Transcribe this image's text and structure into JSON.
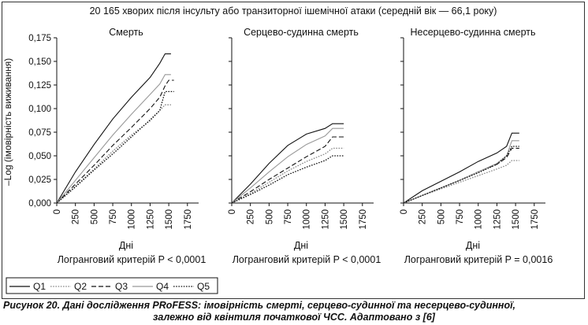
{
  "caption": {
    "line1": "Рисунок 20. Дані дослідження PRoFESS: імовірність смерті, серцево-судинної та несерцево-судинної,",
    "line2": "залежно від квінтиля початкової ЧСС. Адаптовано з [6]"
  },
  "chart_data": {
    "type": "line",
    "title": "20 165 хворих після інсульту або транзиторної ішемічної атаки (середній вік — 66,1 року)",
    "ylabel": "–Log (імовірність виживання)",
    "xlabel": "Дні",
    "ylim": [
      0,
      0.175
    ],
    "xlim": [
      0,
      1900
    ],
    "x_ticks": [
      "0",
      "250",
      "500",
      "750",
      "1000",
      "1250",
      "1500",
      "1750"
    ],
    "y_ticks": [
      "0,000",
      "0,025",
      "0,050",
      "0,075",
      "0,100",
      "0,125",
      "0,150",
      "0,175"
    ],
    "grid": false,
    "legend": {
      "placement": "bottom-left",
      "entries": [
        {
          "name": "Q1",
          "style": "solid",
          "color": "#111111"
        },
        {
          "name": "Q2",
          "style": "dotted",
          "color": "#888888"
        },
        {
          "name": "Q3",
          "style": "dashed",
          "color": "#111111"
        },
        {
          "name": "Q4",
          "style": "solid",
          "color": "#999999"
        },
        {
          "name": "Q5",
          "style": "dotted",
          "color": "#111111"
        }
      ]
    },
    "panels": [
      {
        "title": "Смерть",
        "test": "Логранговий критерій P < 0,0001",
        "series": [
          {
            "name": "Q1",
            "x": [
              0,
              250,
              500,
              750,
              1000,
              1250,
              1380,
              1450,
              1530
            ],
            "y": [
              0,
              0.033,
              0.062,
              0.089,
              0.112,
              0.133,
              0.148,
              0.158,
              0.158
            ]
          },
          {
            "name": "Q2",
            "x": [
              0,
              250,
              500,
              750,
              1000,
              1250,
              1380,
              1450,
              1530
            ],
            "y": [
              0,
              0.018,
              0.036,
              0.055,
              0.072,
              0.087,
              0.098,
              0.104,
              0.104
            ]
          },
          {
            "name": "Q3",
            "x": [
              0,
              250,
              500,
              750,
              1000,
              1250,
              1380,
              1450,
              1500,
              1570
            ],
            "y": [
              0,
              0.02,
              0.04,
              0.061,
              0.08,
              0.1,
              0.112,
              0.124,
              0.13,
              0.13
            ]
          },
          {
            "name": "Q4",
            "x": [
              0,
              250,
              500,
              750,
              1000,
              1250,
              1380,
              1450,
              1530
            ],
            "y": [
              0,
              0.024,
              0.048,
              0.072,
              0.094,
              0.115,
              0.126,
              0.136,
              0.136
            ]
          },
          {
            "name": "Q5",
            "x": [
              0,
              250,
              500,
              750,
              1000,
              1250,
              1380,
              1450,
              1570
            ],
            "y": [
              0,
              0.017,
              0.035,
              0.052,
              0.07,
              0.088,
              0.098,
              0.118,
              0.118
            ]
          }
        ]
      },
      {
        "title": "Серцево-судинна смерть",
        "test": "Логранговий критерій P < 0,0001",
        "series": [
          {
            "name": "Q1",
            "x": [
              0,
              250,
              500,
              750,
              1000,
              1250,
              1350,
              1500
            ],
            "y": [
              0,
              0.02,
              0.042,
              0.061,
              0.073,
              0.079,
              0.084,
              0.084
            ]
          },
          {
            "name": "Q2",
            "x": [
              0,
              250,
              500,
              750,
              1000,
              1250,
              1350,
              1500
            ],
            "y": [
              0,
              0.01,
              0.022,
              0.034,
              0.044,
              0.052,
              0.058,
              0.058
            ]
          },
          {
            "name": "Q3",
            "x": [
              0,
              250,
              500,
              750,
              1000,
              1250,
              1350,
              1500
            ],
            "y": [
              0,
              0.012,
              0.025,
              0.037,
              0.049,
              0.06,
              0.07,
              0.07
            ]
          },
          {
            "name": "Q4",
            "x": [
              0,
              250,
              500,
              750,
              1000,
              1250,
              1350,
              1500
            ],
            "y": [
              0,
              0.016,
              0.033,
              0.049,
              0.062,
              0.071,
              0.079,
              0.079
            ]
          },
          {
            "name": "Q5",
            "x": [
              0,
              250,
              500,
              750,
              1000,
              1250,
              1350,
              1500
            ],
            "y": [
              0,
              0.009,
              0.019,
              0.03,
              0.038,
              0.045,
              0.05,
              0.05
            ]
          }
        ]
      },
      {
        "title": "Несерцево-судинна смерть",
        "test": "Логранговий критерій P = 0,0016",
        "series": [
          {
            "name": "Q1",
            "x": [
              0,
              250,
              500,
              750,
              1000,
              1250,
              1380,
              1450,
              1550
            ],
            "y": [
              0,
              0.013,
              0.023,
              0.033,
              0.044,
              0.053,
              0.06,
              0.074,
              0.074
            ]
          },
          {
            "name": "Q2",
            "x": [
              0,
              250,
              500,
              750,
              1000,
              1250,
              1380,
              1450,
              1550
            ],
            "y": [
              0,
              0.008,
              0.015,
              0.022,
              0.029,
              0.036,
              0.04,
              0.045,
              0.045
            ]
          },
          {
            "name": "Q3",
            "x": [
              0,
              250,
              500,
              750,
              1000,
              1250,
              1380,
              1450,
              1550
            ],
            "y": [
              0,
              0.008,
              0.016,
              0.024,
              0.033,
              0.041,
              0.048,
              0.058,
              0.058
            ]
          },
          {
            "name": "Q4",
            "x": [
              0,
              250,
              500,
              750,
              1000,
              1250,
              1380,
              1450,
              1550
            ],
            "y": [
              0,
              0.008,
              0.016,
              0.024,
              0.033,
              0.042,
              0.05,
              0.066,
              0.066
            ]
          },
          {
            "name": "Q5",
            "x": [
              0,
              250,
              500,
              750,
              1000,
              1250,
              1380,
              1450,
              1550
            ],
            "y": [
              0,
              0.008,
              0.016,
              0.024,
              0.032,
              0.041,
              0.05,
              0.06,
              0.06
            ]
          }
        ]
      }
    ]
  }
}
